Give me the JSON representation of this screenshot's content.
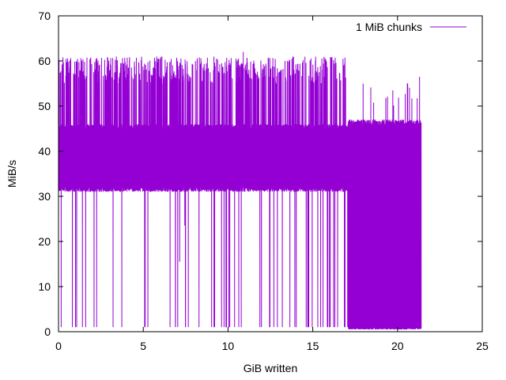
{
  "chart_data": {
    "type": "line",
    "xlabel": "GiB written",
    "ylabel": "MiB/s",
    "xlim": [
      0,
      25
    ],
    "ylim": [
      0,
      70
    ],
    "xticks": [
      0,
      5,
      10,
      15,
      20,
      25
    ],
    "yticks": [
      0,
      10,
      20,
      30,
      40,
      50,
      60,
      70
    ],
    "grid": false,
    "legend_position": "top-right",
    "series": [
      {
        "name": "1 MiB chunks",
        "color": "#9400d3",
        "x_range": [
          0,
          21.4
        ],
        "segments": [
          {
            "x_start": 0,
            "x_end": 17.1,
            "typical_low": 31,
            "typical_high": 46,
            "peak_high": 61,
            "dip_low": 1
          },
          {
            "x_start": 17.1,
            "x_end": 21.4,
            "typical_low": 0.5,
            "typical_high": 47,
            "peak_high": 57,
            "dip_low": 0.5
          }
        ],
        "notable_points": [
          {
            "x": 10.9,
            "y": 62
          },
          {
            "x": 7.15,
            "y": 15.5
          },
          {
            "x": 7.45,
            "y": 23.5
          },
          {
            "x": 21.3,
            "y": 56.5
          },
          {
            "x": 20.6,
            "y": 55
          }
        ]
      }
    ]
  }
}
